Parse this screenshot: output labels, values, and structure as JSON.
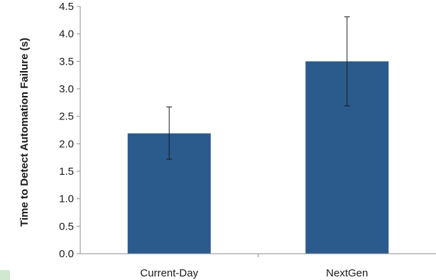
{
  "chart_data": {
    "type": "bar",
    "title": "",
    "xlabel": "",
    "ylabel": "Time to Detect Automation Failure (s)",
    "categories": [
      "Current-Day",
      "NextGen"
    ],
    "values": [
      2.19,
      3.5
    ],
    "error_low": [
      1.72,
      2.69
    ],
    "error_high": [
      2.67,
      4.31
    ],
    "ylim": [
      0,
      4.5
    ],
    "yticks": [
      "0.0",
      "0.5",
      "1.0",
      "1.5",
      "2.0",
      "2.5",
      "3.0",
      "3.5",
      "4.0",
      "4.5"
    ],
    "bar_color": "#2b5a8c",
    "grid": false,
    "legend": "none"
  }
}
